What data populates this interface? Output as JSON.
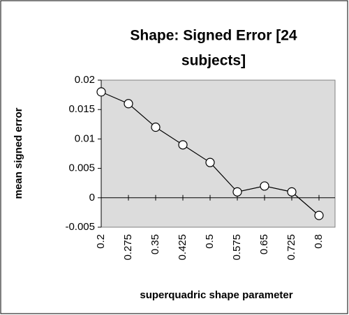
{
  "chart_data": {
    "type": "line",
    "title_lines": [
      "Shape: Signed Error [24",
      "subjects]"
    ],
    "xlabel": "superquadric shape parameter",
    "ylabel": "mean signed error",
    "categories": [
      "0.2",
      "0.275",
      "0.35",
      "0.425",
      "0.5",
      "0.575",
      "0.65",
      "0.725",
      "0.8"
    ],
    "series": [
      {
        "name": "mean signed error",
        "color": "#000000",
        "values": [
          0.018,
          0.016,
          0.012,
          0.009,
          0.006,
          0.001,
          0.002,
          0.001,
          -0.003
        ]
      }
    ],
    "ylim": [
      -0.005,
      0.02
    ],
    "yticks": [
      -0.005,
      0,
      0.005,
      0.01,
      0.015,
      0.02
    ],
    "plot_background": "#dcdcdc"
  }
}
